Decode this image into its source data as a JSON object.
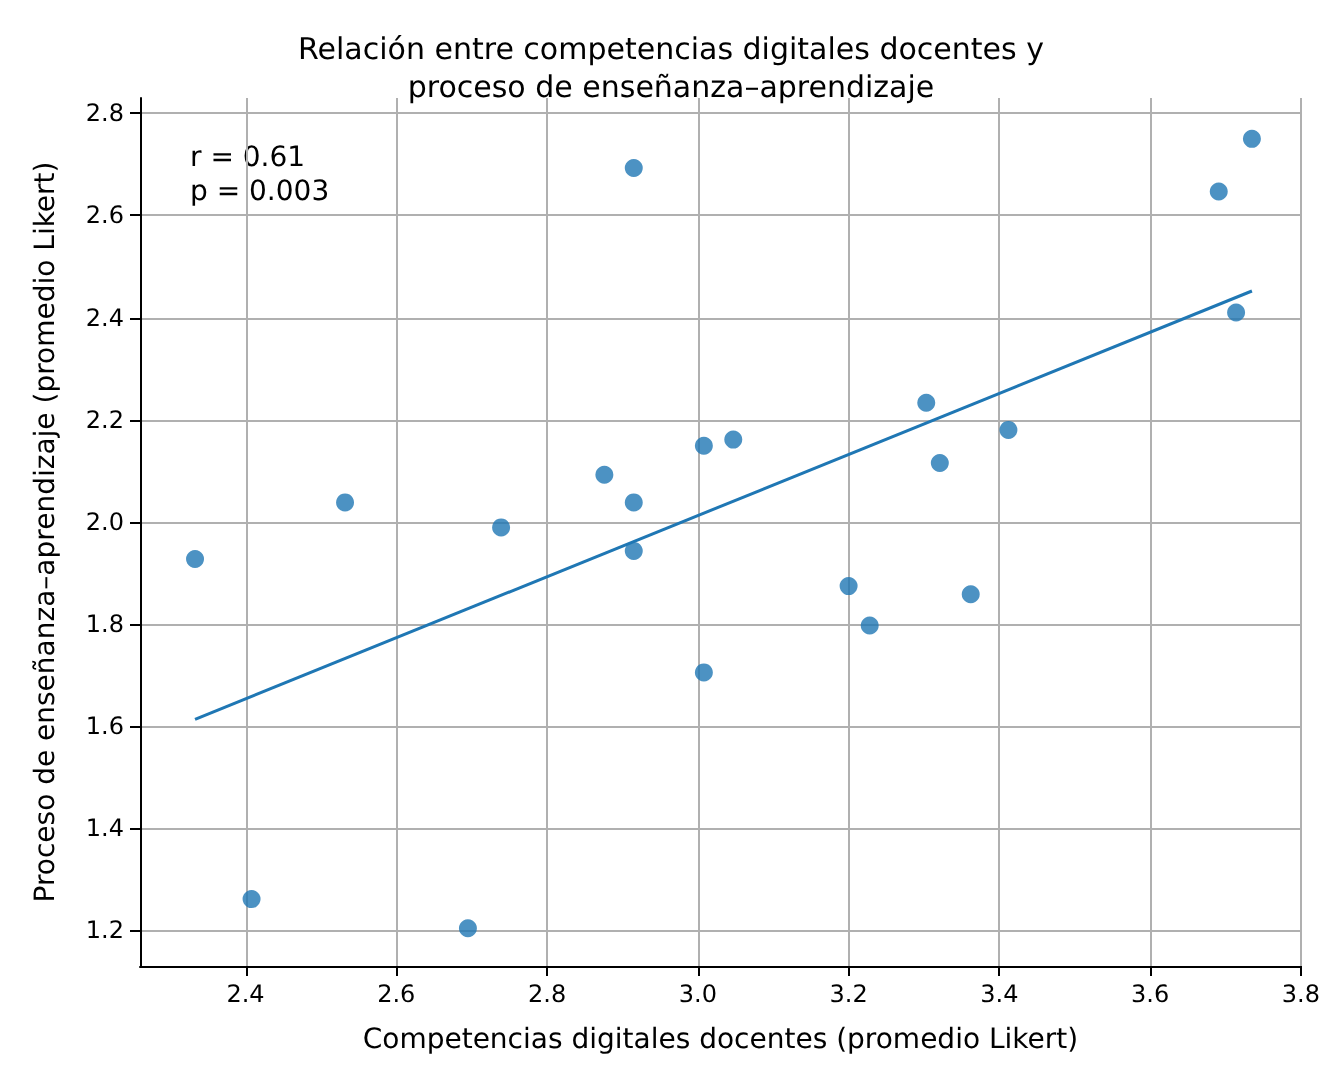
{
  "chart_data": {
    "type": "scatter",
    "title": "Relación entre competencias digitales docentes y\nproceso de enseñanza–aprendizaje",
    "xlabel": "Competencias digitales docentes (promedio Likert)",
    "ylabel": "Proceso de enseñanza–aprendizaje (promedio Likert)",
    "xlim": [
      2.26,
      3.8
    ],
    "ylim": [
      1.13,
      2.83
    ],
    "xticks": [
      2.4,
      2.6,
      2.8,
      {
        "value": 3,
        "label": "3.0"
      },
      3.2,
      3.4,
      3.6,
      3.8
    ],
    "yticks": [
      1.2,
      1.4,
      1.6,
      1.8,
      {
        "value": 2,
        "label": "2.0"
      },
      2.2,
      2.4,
      2.6,
      2.8
    ],
    "grid": true,
    "annotations": [
      "r = 0.61",
      "p = 0.003"
    ],
    "series": [
      {
        "color": "#1f77b4",
        "marker": "circle",
        "x": [
          2.333,
          2.408,
          2.532,
          2.695,
          2.739,
          2.876,
          2.915,
          2.915,
          2.915,
          3.008,
          3.008,
          3.047,
          3.2,
          3.228,
          3.303,
          3.321,
          3.362,
          3.412,
          3.691,
          3.714,
          3.735
        ],
        "values": [
          1.927,
          1.261,
          2.038,
          1.204,
          1.989,
          2.092,
          2.693,
          2.038,
          1.943,
          2.149,
          1.705,
          2.161,
          1.874,
          1.797,
          2.233,
          2.115,
          1.858,
          2.18,
          2.647,
          2.41,
          2.75
        ]
      },
      {
        "type": "line",
        "color": "#1f77b4",
        "marker": "none",
        "x": [
          2.333,
          3.735
        ],
        "values": [
          1.613,
          2.452
        ]
      }
    ]
  }
}
